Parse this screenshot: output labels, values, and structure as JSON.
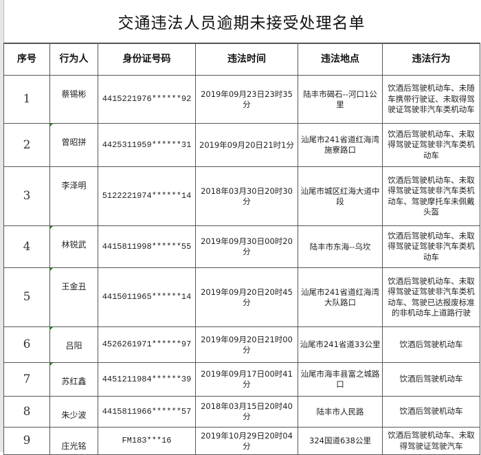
{
  "title": "交通违法人员逾期未接受处理名单",
  "columns": [
    "序号",
    "行为人",
    "身份证号码",
    "违法时间",
    "违法地点",
    "违法行为"
  ],
  "rows": [
    {
      "seq": "1",
      "name": "蔡锡彬",
      "id": "4415221976******92",
      "time": "2019年09月23日23时35分",
      "place": "陆丰市碣石--河口1公里",
      "act": "饮酒后驾驶机动车、未随车携带行驶证、未取得驾驶证驾驶非汽车类机动车"
    },
    {
      "seq": "2",
      "name": "曾昭拼",
      "id": "4425311959******31",
      "time": "2019年09月20日21时1分",
      "place": "汕尾市241省道红海湾施寮路口",
      "act": "饮酒后驾驶机动车、未取得驾驶证驾驶非汽车类机动车"
    },
    {
      "seq": "3",
      "name": "李泽明",
      "id": "5122221974******14",
      "time": "2018年03月30日20时30分",
      "place": "汕尾市城区红海大道中段",
      "act": "饮酒后驾驶机动车、未取得驾驶证驾驶非汽车类机动车、驾驶摩托车未佩戴头盔"
    },
    {
      "seq": "4",
      "name": "林锐武",
      "id": "4415811998******55",
      "time": "2019年09月30日00时20分",
      "place": "陆丰市东海--乌坎",
      "act": "饮酒后驾驶机动车、未取得驾驶证驾驶非汽车类机动车"
    },
    {
      "seq": "5",
      "name": "王金丑",
      "id": "4415011965******14",
      "time": "2019年09月20日20时45分",
      "place": "汕尾市241省道红海湾大队路口",
      "act": "饮酒后驾驶机动车、未取得驾驶证驾驶非汽车类机动车、驾驶已达报废标准的非机动车上道路行驶"
    },
    {
      "seq": "6",
      "name": "吕阳",
      "id": "4526261971******97",
      "time": "2019年09月20日21时00分",
      "place": "汕尾市241省道33公里",
      "act": "饮酒后驾驶机动车"
    },
    {
      "seq": "7",
      "name": "苏红鑫",
      "id": "4451211984******39",
      "time": "2019年09月17日00时41分",
      "place": "汕尾市海丰县富之城路口",
      "act": "饮酒后驾驶机动车"
    },
    {
      "seq": "8",
      "name": "朱少波",
      "id": "4415811966******57",
      "time": "2018年03月15日20时40分",
      "place": "陆丰市人民路",
      "act": "饮酒后驾驶机动车"
    },
    {
      "seq": "9",
      "name": "庄光铭",
      "id": "FM183***16",
      "time": "2019年10月29日20时04分",
      "place": "324国道638公里",
      "act": "饮酒后驾驶机动车、未取得驾驶证驾驶汽车"
    }
  ]
}
